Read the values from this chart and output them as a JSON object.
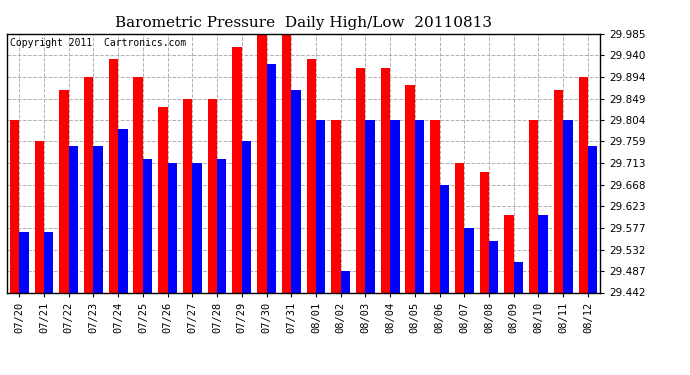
{
  "title": "Barometric Pressure  Daily High/Low  20110813",
  "copyright_text": "Copyright 2011  Cartronics.com",
  "categories": [
    "07/20",
    "07/21",
    "07/22",
    "07/23",
    "07/24",
    "07/25",
    "07/26",
    "07/27",
    "07/28",
    "07/29",
    "07/30",
    "07/31",
    "08/01",
    "08/02",
    "08/03",
    "08/04",
    "08/05",
    "08/06",
    "08/07",
    "08/08",
    "08/09",
    "08/10",
    "08/11",
    "08/12"
  ],
  "highs": [
    29.804,
    29.759,
    29.868,
    29.894,
    29.931,
    29.894,
    29.831,
    29.849,
    29.849,
    29.958,
    29.985,
    29.985,
    29.931,
    29.804,
    29.913,
    29.913,
    29.877,
    29.804,
    29.713,
    29.695,
    29.604,
    29.804,
    29.868,
    29.894
  ],
  "lows": [
    29.568,
    29.568,
    29.75,
    29.75,
    29.786,
    29.723,
    29.714,
    29.714,
    29.723,
    29.759,
    29.922,
    29.868,
    29.804,
    29.487,
    29.804,
    29.804,
    29.804,
    29.668,
    29.577,
    29.55,
    29.505,
    29.604,
    29.804,
    29.75
  ],
  "ymin": 29.442,
  "ymax": 29.985,
  "yticks": [
    29.442,
    29.487,
    29.532,
    29.577,
    29.623,
    29.668,
    29.713,
    29.759,
    29.804,
    29.849,
    29.894,
    29.94,
    29.985
  ],
  "high_color": "#ff0000",
  "low_color": "#0000ff",
  "bg_color": "#ffffff",
  "grid_color": "#b0b0b0",
  "title_fontsize": 11,
  "tick_fontsize": 7.5,
  "copyright_fontsize": 7
}
